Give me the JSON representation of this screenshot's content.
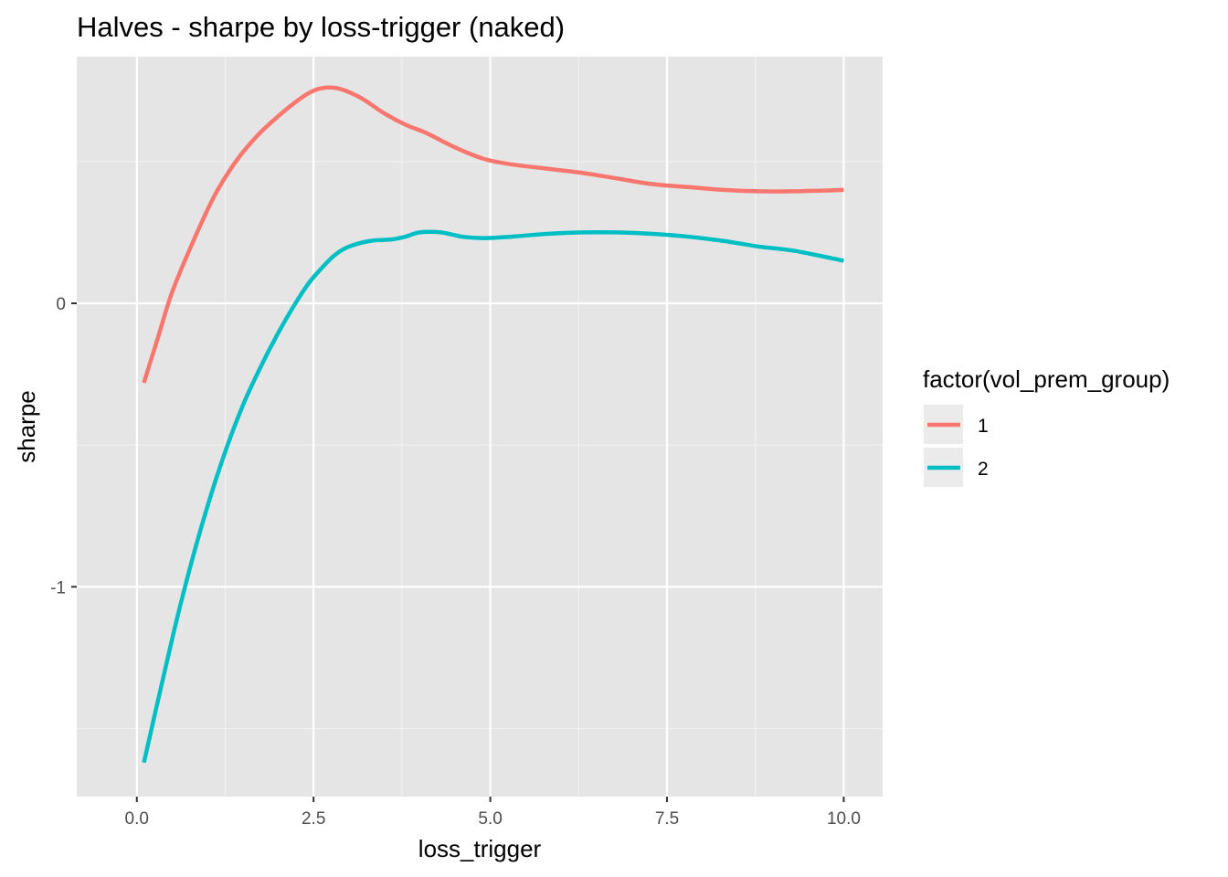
{
  "chart_data": {
    "type": "line",
    "title": "Halves - sharpe by loss-trigger (naked)",
    "xlabel": "loss_trigger",
    "ylabel": "sharpe",
    "xlim": [
      -0.85,
      10.55
    ],
    "ylim": [
      -1.74,
      0.87
    ],
    "x_ticks": [
      0.0,
      2.5,
      5.0,
      7.5,
      10.0
    ],
    "x_tick_labels": [
      "0.0",
      "2.5",
      "5.0",
      "7.5",
      "10.0"
    ],
    "x_minor_ticks": [
      1.25,
      3.75,
      6.25,
      8.75
    ],
    "y_ticks": [
      0,
      -1
    ],
    "y_tick_labels": [
      "0",
      "-1"
    ],
    "y_minor_ticks": [
      0.5,
      -0.5,
      -1.5
    ],
    "grid": true,
    "background": "#e5e5e5",
    "legend": {
      "title": "factor(vol_prem_group)",
      "placement": "right",
      "entries": [
        "1",
        "2"
      ]
    },
    "series": [
      {
        "name": "1",
        "color": "#f8766d",
        "x": [
          0.1,
          0.3,
          0.5,
          0.8,
          1.1,
          1.4,
          1.7,
          2.0,
          2.3,
          2.5,
          2.65,
          2.8,
          2.95,
          3.2,
          3.5,
          3.8,
          4.1,
          4.5,
          4.9,
          5.3,
          5.8,
          6.3,
          6.8,
          7.3,
          7.8,
          8.3,
          8.8,
          9.3,
          10.0
        ],
        "y": [
          -0.28,
          -0.12,
          0.04,
          0.22,
          0.38,
          0.5,
          0.59,
          0.66,
          0.72,
          0.75,
          0.76,
          0.76,
          0.75,
          0.72,
          0.67,
          0.63,
          0.6,
          0.55,
          0.51,
          0.49,
          0.475,
          0.46,
          0.44,
          0.42,
          0.41,
          0.4,
          0.395,
          0.395,
          0.4
        ]
      },
      {
        "name": "2",
        "color": "#00bfc4",
        "x": [
          0.1,
          0.3,
          0.6,
          0.9,
          1.2,
          1.5,
          1.8,
          2.1,
          2.4,
          2.6,
          2.8,
          3.0,
          3.3,
          3.6,
          3.8,
          4.0,
          4.3,
          4.6,
          4.9,
          5.3,
          5.8,
          6.3,
          6.8,
          7.3,
          7.8,
          8.3,
          8.8,
          9.3,
          10.0
        ],
        "y": [
          -1.62,
          -1.4,
          -1.08,
          -0.8,
          -0.56,
          -0.36,
          -0.2,
          -0.06,
          0.06,
          0.12,
          0.17,
          0.2,
          0.22,
          0.225,
          0.235,
          0.25,
          0.25,
          0.235,
          0.23,
          0.235,
          0.245,
          0.25,
          0.25,
          0.245,
          0.235,
          0.22,
          0.2,
          0.185,
          0.15
        ]
      }
    ]
  }
}
